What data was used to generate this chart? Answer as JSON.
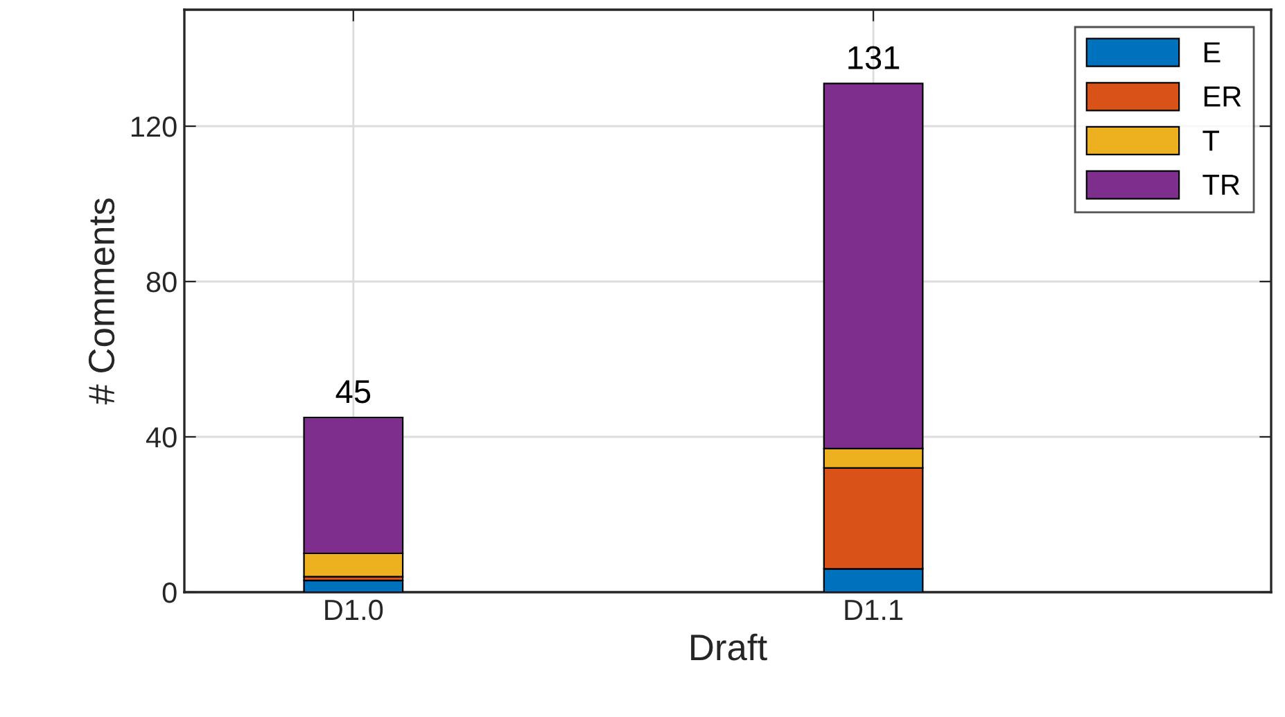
{
  "chart_data": {
    "type": "bar",
    "stacked": true,
    "xlabel": "Draft",
    "ylabel": "# Comments",
    "categories": [
      "D1.0",
      "D1.1"
    ],
    "series": [
      {
        "name": "E",
        "color": "#0072bd",
        "values": [
          3,
          6
        ]
      },
      {
        "name": "ER",
        "color": "#d95319",
        "values": [
          1,
          26
        ]
      },
      {
        "name": "T",
        "color": "#edb120",
        "values": [
          6,
          5
        ]
      },
      {
        "name": "TR",
        "color": "#7e2f8e",
        "values": [
          35,
          94
        ]
      }
    ],
    "totals": [
      "45",
      "131"
    ],
    "ylim": [
      0,
      150
    ],
    "yticks": [
      0,
      40,
      80,
      120
    ],
    "grid": true,
    "legend": "top right"
  }
}
